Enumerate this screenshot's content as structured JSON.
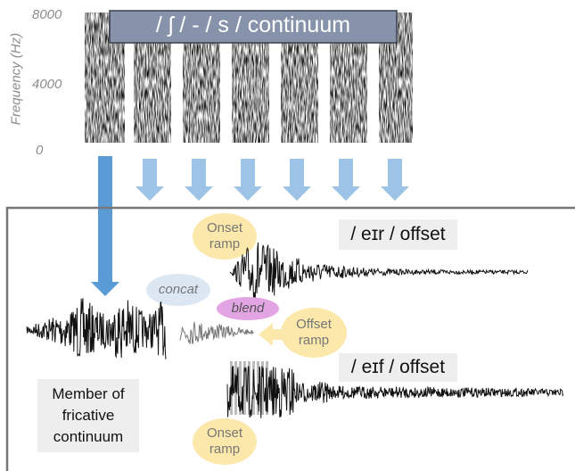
{
  "spectrogram": {
    "title": "/ ʃ / - / s / continuum",
    "axis_label": "Frequency (Hz)",
    "ticks": [
      "8000",
      "4000",
      "0"
    ]
  },
  "diagram": {
    "onset_ramp_top": "Onset ramp",
    "eir_offset": "/ eɪr / offset",
    "concat": "concat",
    "blend": "blend",
    "offset_ramp": "Offset ramp",
    "eif_offset": "/ eɪf / offset",
    "member": "Member of fricative continuum",
    "onset_ramp_bottom": "Onset ramp"
  }
}
